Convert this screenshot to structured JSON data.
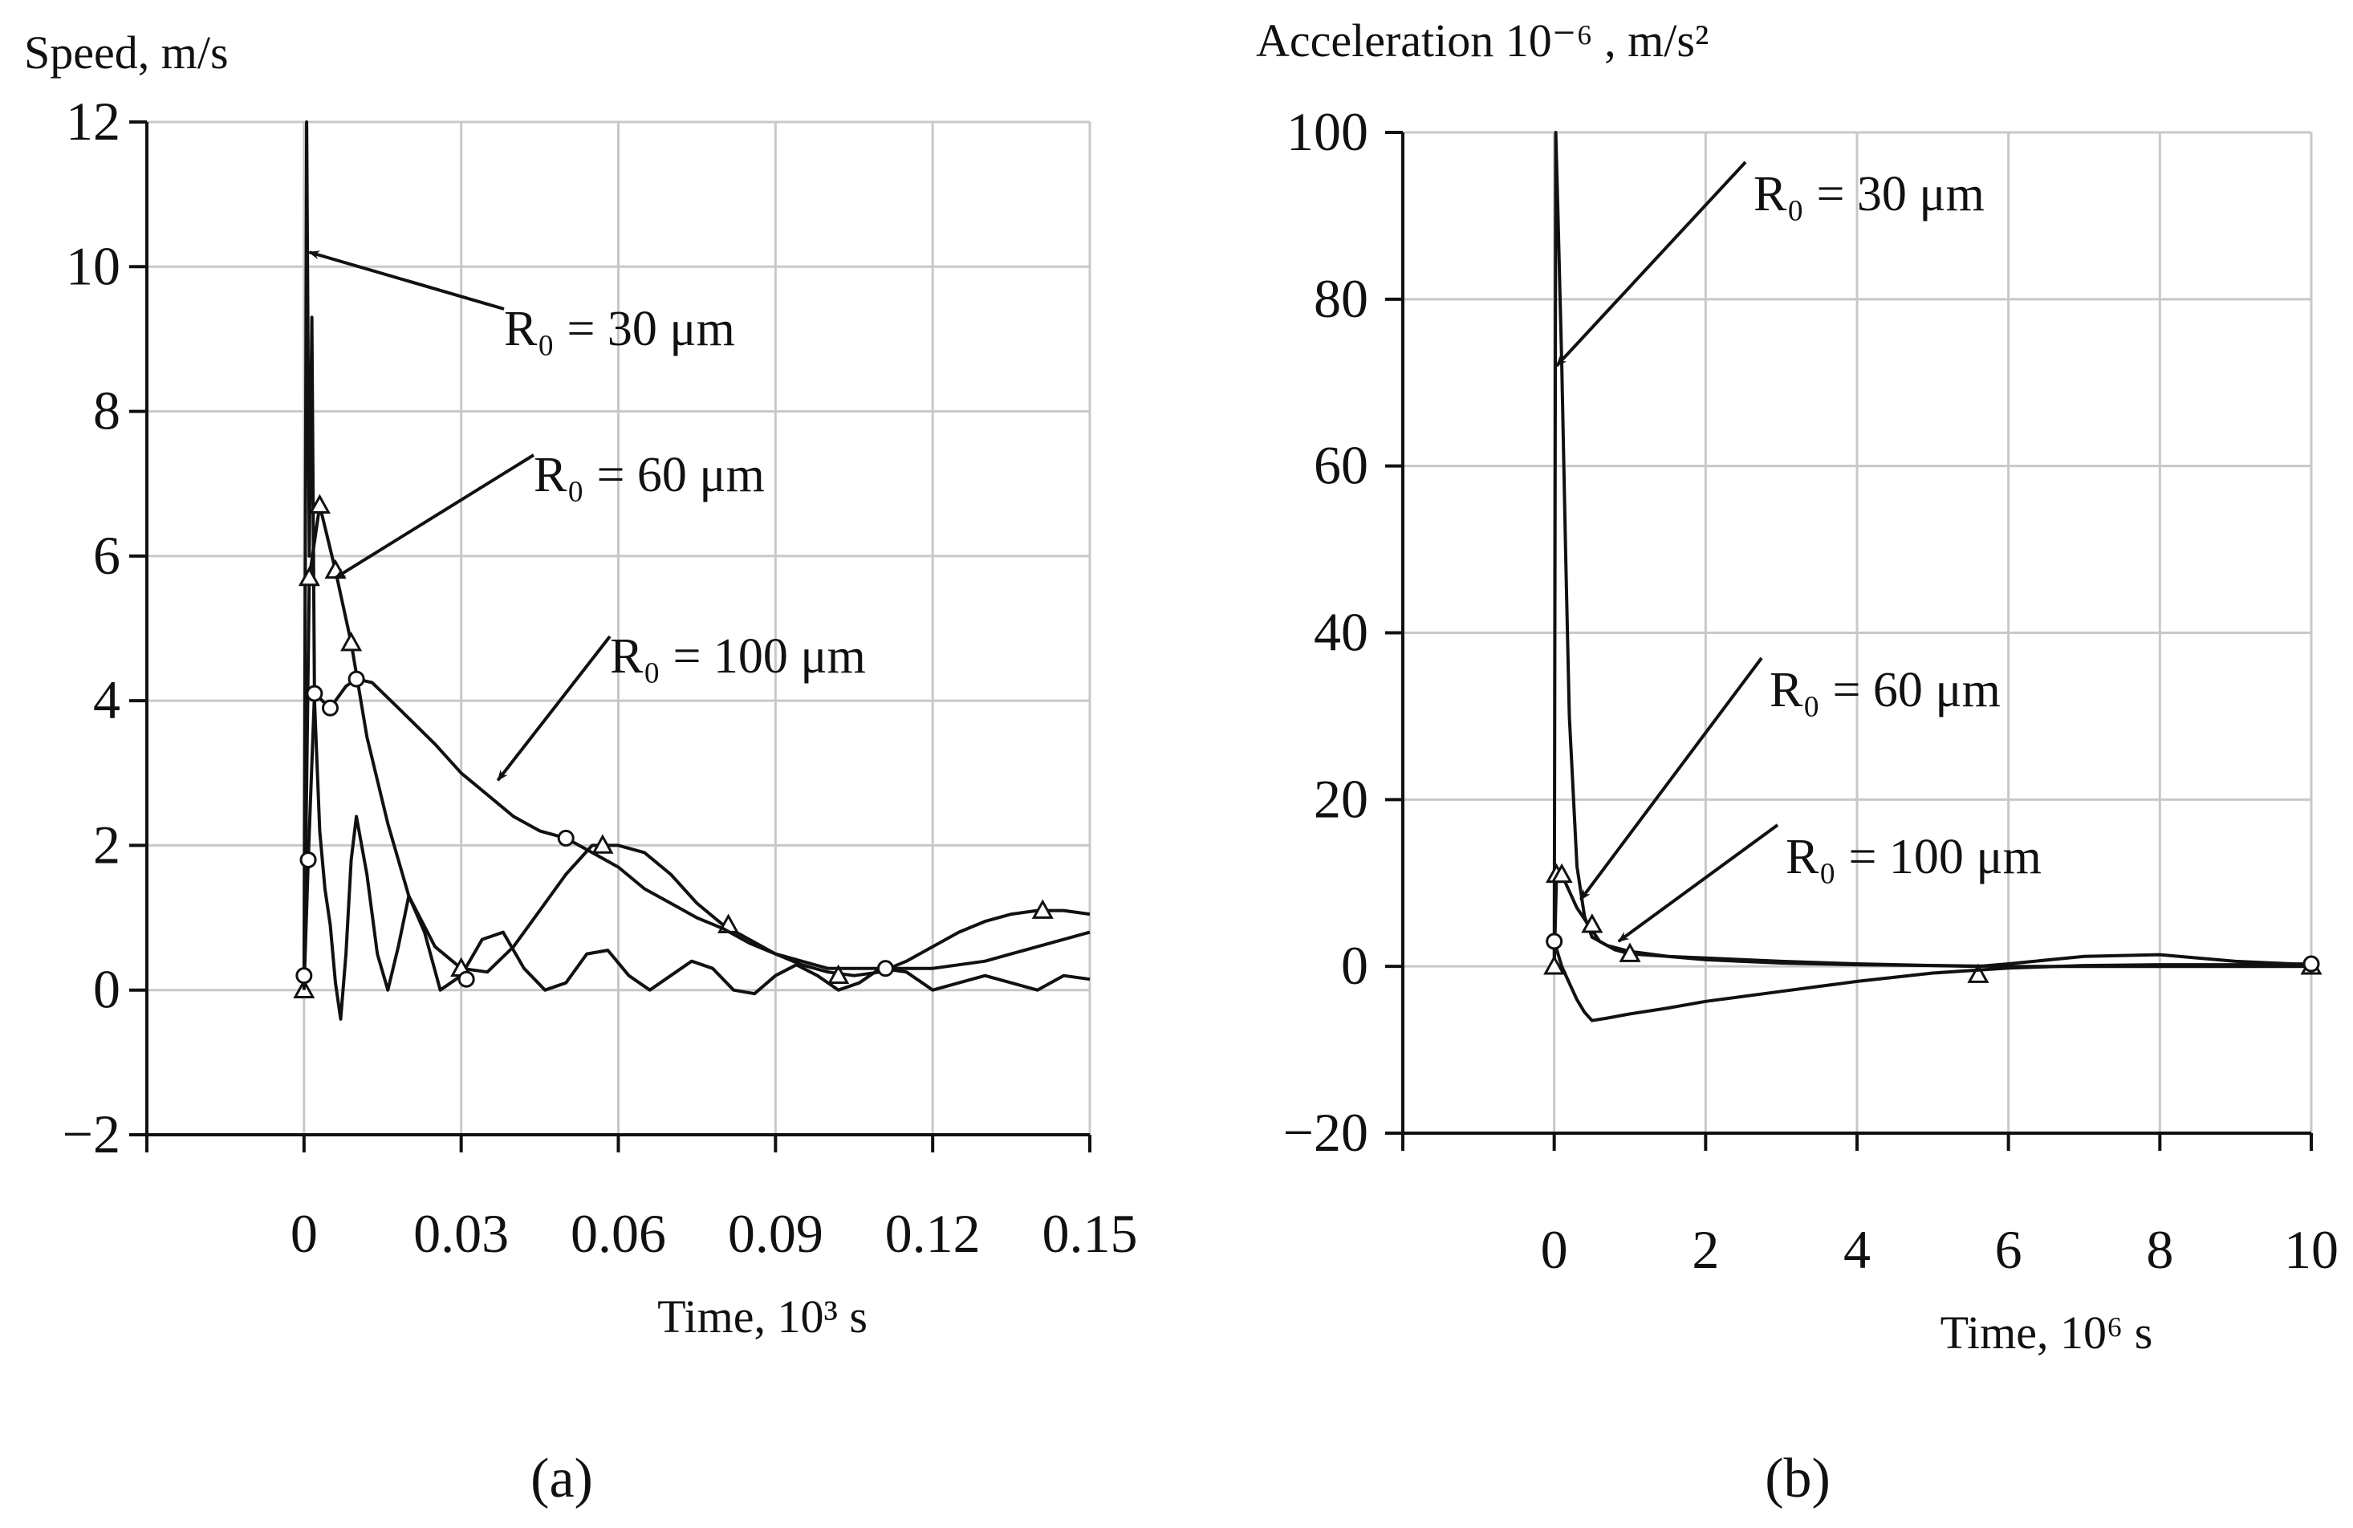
{
  "chart_data": [
    {
      "type": "line",
      "panel": "(a)",
      "title": "Speed, m/s",
      "xlabel": "Time, 10³ s",
      "ylabel": "Speed, m/s",
      "xlim": [
        -0.03,
        0.15
      ],
      "ylim": [
        -2,
        12
      ],
      "x_ticks": [
        0,
        0.03,
        0.06,
        0.09,
        0.12,
        0.15
      ],
      "x_tick_labels": [
        "0",
        "0.03",
        "0.06",
        "0.09",
        "0.12",
        "0.15"
      ],
      "y_ticks": [
        -2,
        0,
        2,
        4,
        6,
        8,
        10,
        12
      ],
      "y_tick_labels": [
        "−2",
        "0",
        "2",
        "4",
        "6",
        "8",
        "10",
        "12"
      ],
      "series": [
        {
          "name": "R₀ = 30 μm",
          "marker": "none",
          "x": [
            0,
            0.0005,
            0.001,
            0.0015,
            0.002,
            0.003,
            0.004,
            0.005,
            0.006,
            0.007,
            0.008,
            0.009,
            0.01,
            0.012,
            0.014,
            0.016,
            0.018,
            0.02,
            0.023,
            0.026,
            0.03,
            0.034,
            0.038,
            0.042,
            0.046,
            0.05,
            0.054,
            0.058,
            0.062,
            0.066,
            0.07,
            0.074,
            0.078,
            0.082,
            0.086,
            0.09,
            0.094,
            0.098,
            0.102,
            0.106,
            0.11,
            0.115,
            0.12,
            0.125,
            0.13,
            0.135,
            0.14,
            0.145,
            0.15
          ],
          "y": [
            0,
            12,
            6,
            9.3,
            4,
            2.2,
            1.4,
            0.9,
            0.1,
            -0.4,
            0.5,
            1.8,
            2.4,
            1.6,
            0.5,
            0,
            0.6,
            1.3,
            0.8,
            0,
            0.2,
            0.7,
            0.8,
            0.3,
            0,
            0.1,
            0.5,
            0.55,
            0.2,
            0,
            0.2,
            0.4,
            0.3,
            0,
            -0.05,
            0.2,
            0.35,
            0.2,
            0,
            0.1,
            0.3,
            0.25,
            0,
            0.1,
            0.2,
            0.1,
            0,
            0.2,
            0.15
          ]
        },
        {
          "name": "R₀ = 60 μm",
          "marker": "triangle",
          "x": [
            0,
            0.001,
            0.003,
            0.006,
            0.009,
            0.012,
            0.016,
            0.02,
            0.025,
            0.03,
            0.035,
            0.04,
            0.045,
            0.05,
            0.055,
            0.06,
            0.065,
            0.07,
            0.075,
            0.08,
            0.085,
            0.09,
            0.095,
            0.1,
            0.105,
            0.11,
            0.115,
            0.12,
            0.125,
            0.13,
            0.135,
            0.14,
            0.145,
            0.15
          ],
          "y": [
            0,
            5.7,
            6.7,
            5.8,
            4.8,
            3.5,
            2.3,
            1.3,
            0.6,
            0.3,
            0.25,
            0.6,
            1.1,
            1.6,
            2.0,
            2.0,
            1.9,
            1.6,
            1.2,
            0.9,
            0.7,
            0.5,
            0.35,
            0.25,
            0.2,
            0.25,
            0.4,
            0.6,
            0.8,
            0.95,
            1.05,
            1.1,
            1.1,
            1.05
          ],
          "marker_x": [
            0,
            0.001,
            0.003,
            0.006,
            0.009,
            0.03,
            0.057,
            0.081,
            0.102,
            0.141
          ],
          "marker_y": [
            0,
            5.7,
            6.7,
            5.8,
            4.8,
            0.3,
            2.0,
            0.9,
            0.2,
            1.1
          ]
        },
        {
          "name": "R₀ = 100  μm",
          "marker": "circle",
          "x": [
            0,
            0.0008,
            0.002,
            0.005,
            0.008,
            0.01,
            0.013,
            0.018,
            0.025,
            0.03,
            0.035,
            0.04,
            0.045,
            0.05,
            0.055,
            0.06,
            0.065,
            0.07,
            0.075,
            0.08,
            0.085,
            0.09,
            0.095,
            0.1,
            0.105,
            0.11,
            0.115,
            0.12,
            0.125,
            0.13,
            0.135,
            0.14,
            0.145,
            0.15
          ],
          "y": [
            0,
            1.8,
            4.1,
            3.9,
            4.2,
            4.3,
            4.25,
            3.9,
            3.4,
            3.0,
            2.7,
            2.4,
            2.2,
            2.1,
            1.9,
            1.7,
            1.4,
            1.2,
            1.0,
            0.85,
            0.65,
            0.5,
            0.4,
            0.3,
            0.3,
            0.3,
            0.3,
            0.3,
            0.35,
            0.4,
            0.5,
            0.6,
            0.7,
            0.8
          ],
          "marker_x": [
            0,
            0.0008,
            0.002,
            0.005,
            0.01,
            0.031,
            0.05,
            0.111
          ],
          "marker_y": [
            0.2,
            1.8,
            4.1,
            3.9,
            4.3,
            0.15,
            2.1,
            0.3
          ]
        }
      ],
      "annotations": [
        {
          "text": "R₀ = 30 μm",
          "x": 0.001,
          "y": 10.2
        },
        {
          "text": "R₀ = 60 μm",
          "x": 0.006,
          "y": 5.7
        },
        {
          "text": "R₀ = 100  μm",
          "x": 0.037,
          "y": 2.9
        }
      ],
      "caption": "(a)"
    },
    {
      "type": "line",
      "panel": "(b)",
      "title": "Acceleration 10⁻⁶ , m/s²",
      "xlabel": "Time, 10⁶ s",
      "ylabel": "Acceleration 10⁻⁶ , m/s²",
      "xlim": [
        -2,
        10
      ],
      "ylim": [
        -20,
        100
      ],
      "x_ticks": [
        0,
        2,
        4,
        6,
        8,
        10
      ],
      "x_tick_labels": [
        "0",
        "2",
        "4",
        "6",
        "8",
        "10"
      ],
      "y_ticks": [
        -20,
        0,
        20,
        40,
        60,
        80,
        100
      ],
      "y_tick_labels": [
        "−20",
        "0",
        "20",
        "40",
        "60",
        "80",
        "100"
      ],
      "series": [
        {
          "name": "R₀ = 30 μm",
          "marker": "none",
          "x": [
            0,
            0.02,
            0.05,
            0.1,
            0.15,
            0.2,
            0.3,
            0.4,
            0.5,
            0.7,
            1,
            1.5,
            2,
            3,
            4,
            5,
            6,
            7,
            8,
            9,
            10
          ],
          "y": [
            0,
            100,
            90,
            72,
            50,
            30,
            12,
            6,
            3.5,
            2.5,
            1.8,
            1.2,
            0.8,
            0.4,
            0.2,
            0.1,
            0,
            0,
            0,
            0,
            0
          ]
        },
        {
          "name": "R₀ = 60 μm",
          "marker": "triangle",
          "x": [
            0,
            0.03,
            0.1,
            0.2,
            0.3,
            0.45,
            0.6,
            0.8,
            1.0,
            1.5,
            2,
            3,
            4,
            5,
            5.6,
            6,
            7,
            8,
            9,
            10
          ],
          "y": [
            0,
            11,
            11,
            9,
            7,
            5,
            3,
            2,
            1.5,
            1.2,
            1.0,
            0.6,
            0.3,
            0.1,
            0,
            0.3,
            1.2,
            1.4,
            0.6,
            0.2
          ],
          "marker_x": [
            0,
            0.03,
            0.1,
            0.5,
            1.0,
            5.6,
            10
          ],
          "marker_y": [
            0,
            11,
            11,
            5,
            1.5,
            -1,
            0
          ]
        },
        {
          "name": "R₀ = 100  μm",
          "marker": "circle",
          "x": [
            0,
            0.1,
            0.2,
            0.3,
            0.4,
            0.5,
            0.7,
            1,
            1.5,
            2,
            3,
            4,
            5,
            6,
            7,
            8,
            9,
            10
          ],
          "y": [
            3,
            0,
            -2,
            -4,
            -5.5,
            -6.5,
            -6.2,
            -5.7,
            -5,
            -4.2,
            -3,
            -1.8,
            -0.8,
            -0.2,
            0.1,
            0.2,
            0.2,
            0.3
          ],
          "marker_x": [
            0,
            10
          ],
          "marker_y": [
            3,
            0.3
          ]
        }
      ],
      "annotations": [
        {
          "text": "R₀ = 30 μm",
          "x": 0.03,
          "y": 72
        },
        {
          "text": "R₀ = 60 μm",
          "x": 0.35,
          "y": 8
        },
        {
          "text": "R₀ = 100  μm",
          "x": 0.85,
          "y": 3
        }
      ],
      "caption": "(b)"
    }
  ]
}
